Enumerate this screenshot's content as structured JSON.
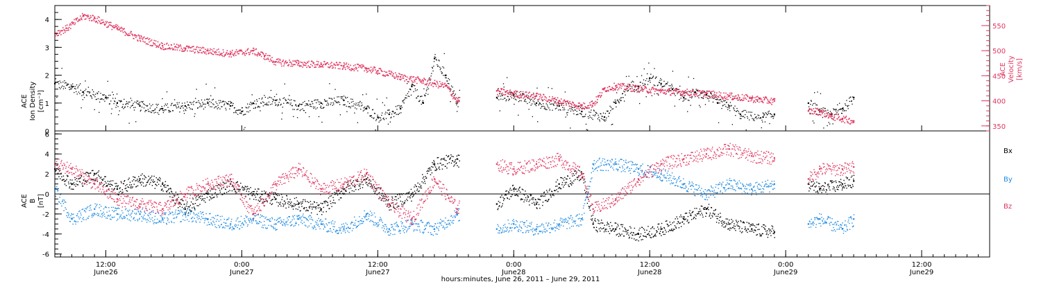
{
  "colors": {
    "black": "#000000",
    "pink": "#e0355f",
    "blue": "#1f8ae0"
  },
  "chart_data": [
    {
      "type": "scatter",
      "panel": "top",
      "x_unit": "hours since 2011-06-26 00:00 UT",
      "xlim": [
        7.5,
        90
      ],
      "ylabel_left": [
        "ACE",
        "Ion Density",
        "[cm⁻³]"
      ],
      "ylim_left": [
        0,
        4.5
      ],
      "yticks_left": [
        0,
        1,
        2,
        3,
        4
      ],
      "ylabel_right": [
        "ACE",
        "Velocity",
        "[km/s]"
      ],
      "ylim_right": [
        340,
        590
      ],
      "yticks_right": [
        350,
        400,
        450,
        500,
        550
      ],
      "gaps": [
        [
          43.2,
          46.5
        ],
        [
          71.0,
          74.0
        ]
      ],
      "series": [
        {
          "axis": "left",
          "color": "black",
          "x": [
            7.5,
            9,
            10,
            12,
            13,
            15,
            17,
            19,
            21,
            23,
            24,
            25,
            27,
            29,
            31,
            33,
            35,
            36,
            37,
            38,
            39,
            40,
            41,
            42,
            43,
            46.5,
            48,
            50,
            52,
            54,
            56,
            57,
            58,
            59,
            60,
            61,
            62,
            63,
            64,
            65,
            66,
            67,
            68,
            70,
            71,
            74,
            75,
            76,
            77,
            78
          ],
          "values": [
            1.7,
            1.6,
            1.4,
            1.2,
            1.0,
            0.9,
            0.8,
            0.9,
            1.0,
            0.9,
            0.7,
            1.0,
            1.1,
            0.9,
            1.0,
            1.1,
            0.8,
            0.5,
            0.6,
            0.8,
            1.6,
            1.0,
            2.6,
            2.0,
            1.0,
            1.2,
            1.3,
            1.0,
            0.9,
            0.7,
            0.5,
            1.0,
            1.6,
            1.6,
            1.9,
            1.7,
            1.5,
            1.2,
            1.4,
            1.3,
            1.0,
            0.9,
            0.6,
            0.5,
            0.6,
            1.0,
            0.7,
            0.6,
            0.8,
            1.2
          ]
        },
        {
          "axis": "right",
          "color": "pink",
          "x": [
            7.5,
            8.5,
            10,
            11,
            13,
            15,
            17,
            19,
            21,
            23,
            25,
            26,
            27,
            29,
            31,
            33,
            35,
            36,
            38,
            40,
            41,
            42,
            43,
            46.5,
            48,
            50,
            52,
            54,
            55,
            56,
            57,
            59,
            61,
            63,
            65,
            67,
            69,
            71,
            74,
            75,
            76,
            77,
            78
          ],
          "values": [
            535,
            545,
            570,
            565,
            545,
            525,
            510,
            505,
            500,
            495,
            500,
            490,
            478,
            475,
            473,
            470,
            465,
            460,
            448,
            440,
            435,
            430,
            400,
            420,
            415,
            410,
            400,
            390,
            395,
            425,
            430,
            425,
            420,
            418,
            415,
            410,
            405,
            400,
            380,
            380,
            370,
            365,
            360
          ]
        }
      ]
    },
    {
      "type": "scatter",
      "panel": "bottom",
      "x_unit": "hours since 2011-06-26 00:00 UT",
      "xlim": [
        7.5,
        90
      ],
      "ylabel": [
        "ACE",
        "B",
        "[nT]"
      ],
      "ylim": [
        -6.3,
        6.3
      ],
      "yticks": [
        -6,
        -4,
        -2,
        0,
        2,
        4,
        6
      ],
      "zero_line": true,
      "gaps": [
        [
          43.2,
          46.5
        ],
        [
          71.0,
          74.0
        ]
      ],
      "series": [
        {
          "name": "Bx",
          "color": "black",
          "x": [
            7.5,
            9,
            11,
            13,
            15,
            17,
            19,
            21,
            23,
            25,
            27,
            29,
            31,
            33,
            35,
            37,
            39,
            41,
            43,
            46.5,
            48,
            50,
            52,
            54,
            55,
            57,
            59,
            61,
            63,
            65,
            67,
            69,
            71,
            74,
            75,
            77,
            78
          ],
          "values": [
            2.5,
            1.0,
            2.0,
            0.5,
            1.5,
            1.0,
            -1.5,
            0.0,
            1.0,
            0.0,
            -0.5,
            -1.0,
            -1.5,
            0.5,
            1.5,
            -1.0,
            0.0,
            3.0,
            3.5,
            -1.0,
            0.5,
            -1.0,
            1.0,
            2.0,
            -3.0,
            -3.5,
            -4.0,
            -3.5,
            -2.5,
            -1.5,
            -3.0,
            -3.5,
            -3.8,
            1.0,
            0.5,
            1.0,
            1.3
          ]
        },
        {
          "name": "By",
          "color": "blue",
          "x": [
            7.5,
            9,
            11,
            13,
            15,
            17,
            19,
            21,
            23,
            25,
            27,
            29,
            31,
            33,
            35,
            37,
            39,
            41,
            43,
            46.5,
            48,
            50,
            52,
            54,
            55,
            57,
            59,
            61,
            63,
            65,
            67,
            69,
            71,
            74,
            75,
            77,
            78
          ],
          "values": [
            0.5,
            -2.5,
            -1.5,
            -2.0,
            -2.0,
            -2.5,
            -2.0,
            -2.5,
            -3.0,
            -2.5,
            -3.0,
            -2.5,
            -3.0,
            -3.5,
            -2.0,
            -3.5,
            -3.0,
            -3.5,
            -2.0,
            -3.5,
            -3.0,
            -3.5,
            -3.0,
            -2.5,
            3.0,
            3.0,
            2.5,
            2.0,
            1.0,
            0.0,
            1.0,
            0.5,
            1.0,
            -3.0,
            -2.5,
            -3.5,
            -2.5
          ]
        },
        {
          "name": "Bz",
          "color": "pink",
          "x": [
            7.5,
            9,
            11,
            13,
            15,
            17,
            19,
            21,
            23,
            25,
            27,
            29,
            31,
            33,
            35,
            37,
            39,
            41,
            43,
            46.5,
            48,
            50,
            52,
            54,
            55,
            57,
            59,
            61,
            63,
            65,
            67,
            69,
            71,
            74,
            75,
            77,
            78
          ],
          "values": [
            3.0,
            2.5,
            1.0,
            -0.5,
            -1.0,
            -1.5,
            0.0,
            1.0,
            1.5,
            -2.0,
            1.0,
            2.5,
            0.5,
            1.0,
            2.0,
            -1.0,
            -2.5,
            1.5,
            -1.5,
            3.0,
            2.5,
            3.0,
            3.5,
            2.0,
            -1.5,
            -0.5,
            1.5,
            3.0,
            3.5,
            4.0,
            4.5,
            3.8,
            3.6,
            1.5,
            2.5,
            2.5,
            2.7
          ]
        }
      ]
    }
  ],
  "legend": {
    "bx": "Bx",
    "by": "By",
    "bz": "Bz",
    "placement": "right of bottom panel"
  },
  "x_axis": {
    "ticks": [
      {
        "hours": 12,
        "time": "12:00",
        "day": "June26"
      },
      {
        "hours": 24,
        "time": "0:00",
        "day": "June27"
      },
      {
        "hours": 36,
        "time": "12:00",
        "day": "June27"
      },
      {
        "hours": 48,
        "time": "0:00",
        "day": "June28"
      },
      {
        "hours": 60,
        "time": "12:00",
        "day": "June28"
      },
      {
        "hours": 72,
        "time": "0:00",
        "day": "June29"
      },
      {
        "hours": 84,
        "time": "12:00",
        "day": "June29"
      }
    ],
    "title": "hours:minutes, June 26, 2011 – June 29, 2011"
  },
  "panel_labels": {
    "top_left": [
      "ACE",
      "Ion Density",
      "[cm⁻³]"
    ],
    "top_right": [
      "ACE",
      "Velocity",
      "[km/s]"
    ],
    "bottom_left": [
      "ACE",
      "B",
      "[nT]"
    ]
  }
}
